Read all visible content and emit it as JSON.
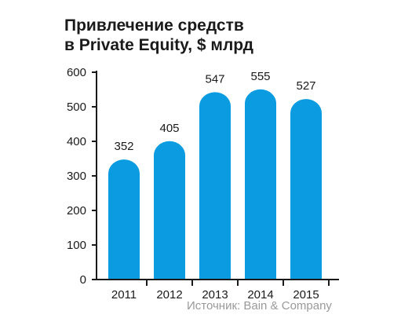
{
  "chart_data": {
    "type": "bar",
    "title_line1": "Привлечение средств",
    "title_line2": "в Private Equity, $ млрд",
    "categories": [
      "2011",
      "2012",
      "2013",
      "2014",
      "2015"
    ],
    "values": [
      352,
      405,
      547,
      555,
      527
    ],
    "y_ticks": [
      "0",
      "100",
      "200",
      "300",
      "400",
      "500",
      "600"
    ],
    "ylim": [
      0,
      600
    ],
    "xlabel": "",
    "ylabel": "",
    "grid": false,
    "bar_color": "#0a9be0",
    "axis_color": "#1a1a1a"
  },
  "source": "Источник: Bain & Company"
}
